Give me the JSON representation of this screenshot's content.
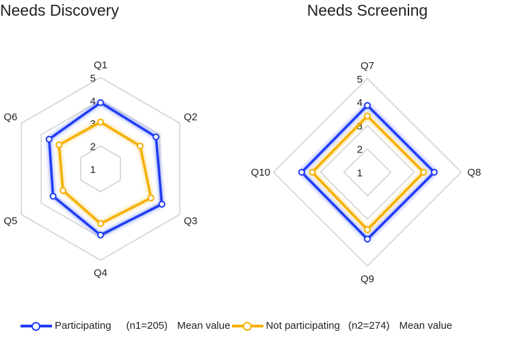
{
  "chart_data": [
    {
      "type": "radar",
      "title": "Needs Discovery",
      "axes": [
        "Q1",
        "Q2",
        "Q3",
        "Q4",
        "Q5",
        "Q6"
      ],
      "range": [
        1,
        5
      ],
      "tick_labels": [
        "1",
        "2",
        "3",
        "4",
        "5"
      ],
      "grid_rings": [
        2,
        4,
        5
      ],
      "series": [
        {
          "name": "Participating (n1=205) Mean value",
          "color": "#1f3cf5",
          "values": [
            3.9,
            3.8,
            4.1,
            3.9,
            3.4,
            3.6
          ]
        },
        {
          "name": "Not participating (n2=274) Mean value",
          "color": "#f5b000",
          "values": [
            3.05,
            3.0,
            3.55,
            3.4,
            2.9,
            3.1
          ]
        }
      ]
    },
    {
      "type": "radar",
      "title": "Needs Screening",
      "axes": [
        "Q7",
        "Q8",
        "Q9",
        "Q10"
      ],
      "range": [
        1,
        5
      ],
      "tick_labels": [
        "1",
        "2",
        "3",
        "4",
        "5"
      ],
      "grid_rings": [
        2,
        3,
        5
      ],
      "series": [
        {
          "name": "Participating (n1=205) Mean value",
          "color": "#1f3cf5",
          "values": [
            3.85,
            3.85,
            3.85,
            3.8
          ]
        },
        {
          "name": "Not participating (n2=274) Mean value",
          "color": "#f5b000",
          "values": [
            3.4,
            3.4,
            3.45,
            3.35
          ]
        }
      ]
    }
  ],
  "legend": [
    {
      "label": "Participating",
      "n": "(n1=205)",
      "suffix": "Mean value",
      "color": "#1f3cf5"
    },
    {
      "label": "Not participating",
      "n": "(n2=274)",
      "suffix": "Mean value",
      "color": "#f5b000"
    }
  ]
}
